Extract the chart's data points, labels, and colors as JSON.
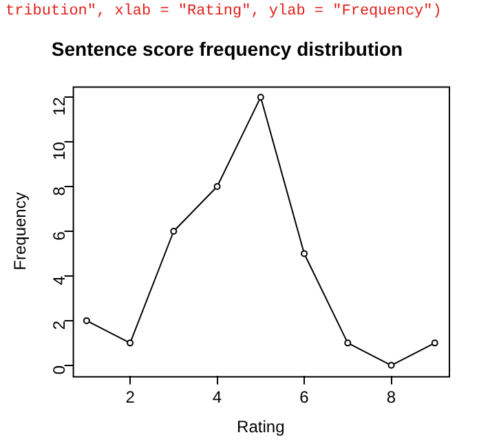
{
  "chart_data": {
    "type": "line",
    "title": "Sentence score frequency distribution",
    "xlabel": "Rating",
    "ylabel": "Frequency",
    "annotations": [
      "tribution\", xlab = \"Rating\", ylab = \"Frequency\")"
    ],
    "x": [
      1,
      2,
      3,
      4,
      5,
      6,
      7,
      8,
      9
    ],
    "series": [
      {
        "color": "#000000",
        "values": [
          2,
          1,
          6,
          8,
          12,
          5,
          1,
          0,
          1
        ]
      }
    ],
    "xlim": [
      0.68,
      9.32
    ],
    "xticks": [
      2,
      4,
      6,
      8
    ],
    "ylim": [
      -0.48,
      12.48
    ],
    "yticks": [
      0,
      2,
      4,
      6,
      8,
      10,
      12
    ],
    "grid": false,
    "legend": false,
    "marker": "circle",
    "line_style": "solid"
  }
}
